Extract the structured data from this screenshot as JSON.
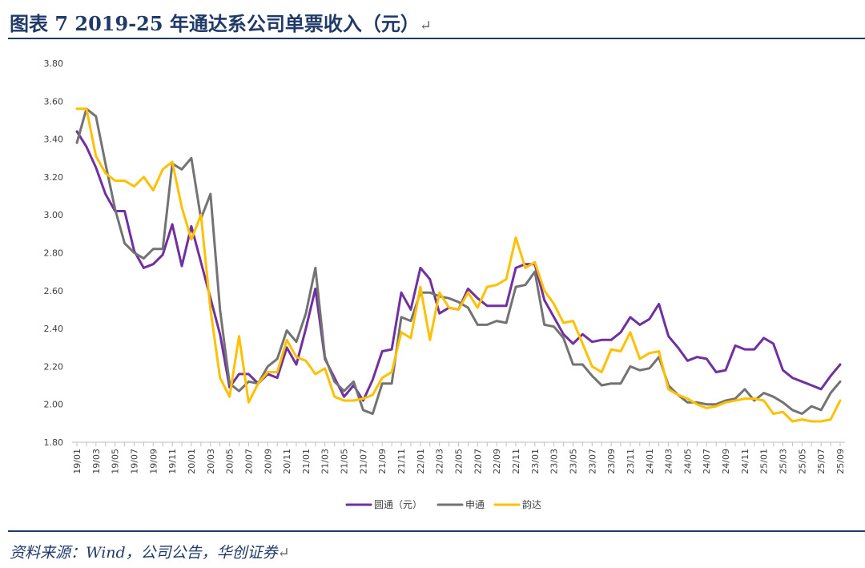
{
  "header": {
    "title": "图表 7   2019-25 年通达系公司单票收入（元）",
    "return_mark": "↵"
  },
  "footer": {
    "source": "资料来源：Wind，公司公告，华创证券",
    "return_mark": "↵"
  },
  "chart_data": {
    "type": "line",
    "title": "",
    "xlabel": "",
    "ylabel": "",
    "ylim": [
      1.8,
      3.8
    ],
    "yticks": [
      1.8,
      2.0,
      2.2,
      2.4,
      2.6,
      2.8,
      3.0,
      3.2,
      3.4,
      3.6,
      3.8
    ],
    "grid": false,
    "legend_position": "bottom",
    "x": [
      "19/01",
      "19/02",
      "19/03",
      "19/04",
      "19/05",
      "19/06",
      "19/07",
      "19/08",
      "19/09",
      "19/10",
      "19/11",
      "19/12",
      "20/01",
      "20/02",
      "20/03",
      "20/04",
      "20/05",
      "20/06",
      "20/07",
      "20/08",
      "20/09",
      "20/10",
      "20/11",
      "20/12",
      "21/01",
      "21/02",
      "21/03",
      "21/04",
      "21/05",
      "21/06",
      "21/07",
      "21/08",
      "21/09",
      "21/10",
      "21/11",
      "21/12",
      "22/01",
      "22/02",
      "22/03",
      "22/04",
      "22/05",
      "22/06",
      "22/07",
      "22/08",
      "22/09",
      "22/10",
      "22/11",
      "22/12",
      "23/01",
      "23/02",
      "23/03",
      "23/04",
      "23/05",
      "23/06",
      "23/07",
      "23/08",
      "23/09",
      "23/10",
      "23/11",
      "23/12",
      "24/01",
      "24/02",
      "24/03",
      "24/04",
      "24/05",
      "24/06",
      "24/07",
      "24/08",
      "24/09",
      "24/10",
      "24/11",
      "24/12",
      "25/01",
      "25/02",
      "25/03",
      "25/04",
      "25/05",
      "25/06",
      "25/07",
      "25/08",
      "25/09"
    ],
    "xtick_labels": [
      "19/01",
      "19/03",
      "19/05",
      "19/07",
      "19/09",
      "19/11",
      "20/01",
      "20/03",
      "20/05",
      "20/07",
      "20/09",
      "20/11",
      "21/01",
      "21/03",
      "21/05",
      "21/07",
      "21/09",
      "21/11",
      "22/01",
      "22/03",
      "22/05",
      "22/07",
      "22/09",
      "22/11",
      "23/01",
      "23/03",
      "23/05",
      "23/07",
      "23/09",
      "23/11",
      "24/01",
      "24/03",
      "24/05",
      "24/07",
      "24/09",
      "24/11",
      "25/01",
      "25/03",
      "25/05",
      "25/07",
      "25/09"
    ],
    "series": [
      {
        "name": "圆通（元）",
        "color": "#7030a0",
        "values": [
          3.44,
          3.36,
          3.25,
          3.11,
          3.02,
          3.02,
          2.81,
          2.72,
          2.74,
          2.79,
          2.95,
          2.73,
          2.94,
          2.75,
          2.56,
          2.37,
          2.09,
          2.16,
          2.16,
          2.11,
          2.16,
          2.14,
          2.3,
          2.21,
          2.4,
          2.61,
          2.24,
          2.14,
          2.04,
          2.1,
          2.02,
          2.13,
          2.28,
          2.29,
          2.59,
          2.5,
          2.72,
          2.66,
          2.48,
          2.51,
          2.5,
          2.61,
          2.56,
          2.52,
          2.52,
          2.52,
          2.72,
          2.74,
          2.74,
          2.55,
          2.46,
          2.37,
          2.32,
          2.37,
          2.33,
          2.34,
          2.34,
          2.38,
          2.46,
          2.42,
          2.45,
          2.53,
          2.36,
          2.3,
          2.23,
          2.25,
          2.24,
          2.17,
          2.18,
          2.31,
          2.29,
          2.29,
          2.35,
          2.32,
          2.18,
          2.14,
          2.12,
          2.1,
          2.08,
          2.15,
          2.21
        ]
      },
      {
        "name": "申通",
        "color": "#737373",
        "values": [
          3.38,
          3.56,
          3.52,
          3.27,
          3.03,
          2.85,
          2.8,
          2.77,
          2.82,
          2.82,
          3.27,
          3.24,
          3.3,
          2.98,
          3.11,
          2.5,
          2.11,
          2.07,
          2.12,
          2.11,
          2.2,
          2.24,
          2.39,
          2.33,
          2.48,
          2.72,
          2.25,
          2.12,
          2.07,
          2.12,
          1.97,
          1.95,
          2.11,
          2.11,
          2.46,
          2.44,
          2.59,
          2.59,
          2.57,
          2.56,
          2.54,
          2.51,
          2.42,
          2.42,
          2.44,
          2.43,
          2.62,
          2.63,
          2.7,
          2.42,
          2.41,
          2.35,
          2.21,
          2.21,
          2.15,
          2.1,
          2.11,
          2.11,
          2.2,
          2.18,
          2.19,
          2.25,
          2.1,
          2.05,
          2.01,
          2.01,
          2.0,
          2.0,
          2.02,
          2.03,
          2.08,
          2.02,
          2.06,
          2.04,
          2.01,
          1.97,
          1.95,
          1.99,
          1.97,
          2.06,
          2.12
        ]
      },
      {
        "name": "韵达",
        "color": "#ffc000",
        "values": [
          3.56,
          3.56,
          3.31,
          3.22,
          3.18,
          3.18,
          3.15,
          3.2,
          3.13,
          3.24,
          3.28,
          3.04,
          2.87,
          3.0,
          2.5,
          2.14,
          2.04,
          2.36,
          2.01,
          2.11,
          2.17,
          2.17,
          2.34,
          2.25,
          2.23,
          2.16,
          2.19,
          2.04,
          2.02,
          2.02,
          2.03,
          2.05,
          2.14,
          2.17,
          2.38,
          2.35,
          2.62,
          2.34,
          2.59,
          2.51,
          2.5,
          2.59,
          2.51,
          2.62,
          2.63,
          2.66,
          2.88,
          2.72,
          2.75,
          2.6,
          2.53,
          2.43,
          2.44,
          2.32,
          2.2,
          2.17,
          2.29,
          2.28,
          2.38,
          2.24,
          2.27,
          2.28,
          2.08,
          2.05,
          2.03,
          2.0,
          1.98,
          1.99,
          2.01,
          2.02,
          2.03,
          2.03,
          2.02,
          1.95,
          1.96,
          1.91,
          1.92,
          1.91,
          1.91,
          1.92,
          2.02
        ]
      }
    ]
  }
}
